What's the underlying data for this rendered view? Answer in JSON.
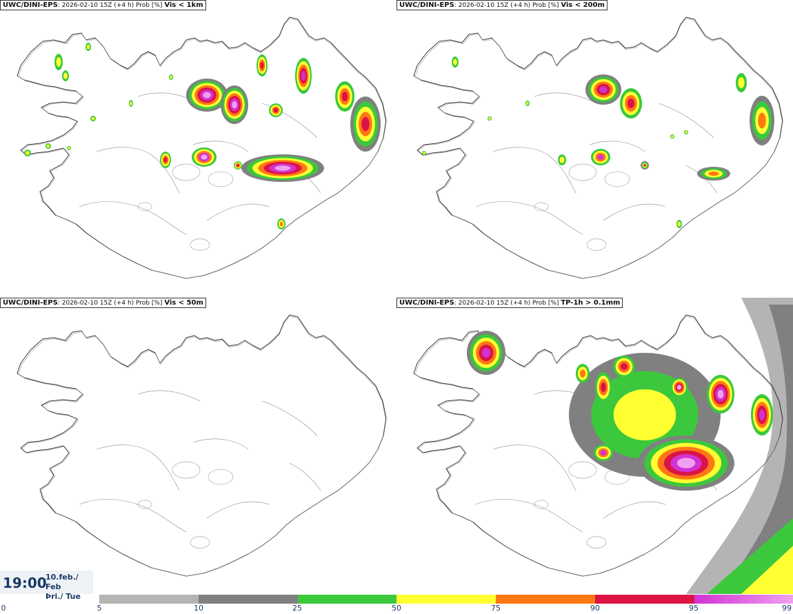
{
  "panels": [
    {
      "model": "UWC/DINI-EPS",
      "meta": ": 2026-02-10 15Z (+4 h) Prob [%] ",
      "threshold": "Vis < 1km"
    },
    {
      "model": "UWC/DINI-EPS",
      "meta": ": 2026-02-10 15Z (+4 h) Prob [%] ",
      "threshold": "Vis < 200m"
    },
    {
      "model": "UWC/DINI-EPS",
      "meta": ": 2026-02-10 15Z (+4 h) Prob [%] ",
      "threshold": "Vis < 50m"
    },
    {
      "model": "UWC/DINI-EPS",
      "meta": ": 2026-02-10 15Z (+4 h) Prob [%] ",
      "threshold": "TP-1h > 0.1mm"
    }
  ],
  "time": {
    "clock": "19:00",
    "date_line1": "10.feb./ Feb",
    "date_line2": "Þri./ Tue"
  },
  "legend": {
    "ticks": [
      "0",
      "5",
      "10",
      "25",
      "50",
      "75",
      "90",
      "95",
      "99"
    ],
    "colors": {
      "p5": "#b4b4b4",
      "p10": "#808080",
      "p25": "#3cc83c",
      "p50": "#ffff32",
      "p75": "#ff7814",
      "p90": "#dc1446",
      "p95": "#d232d2",
      "p99": "#f0a0f0"
    }
  },
  "icons": [
    "iceland-outline",
    "probability-blob"
  ]
}
